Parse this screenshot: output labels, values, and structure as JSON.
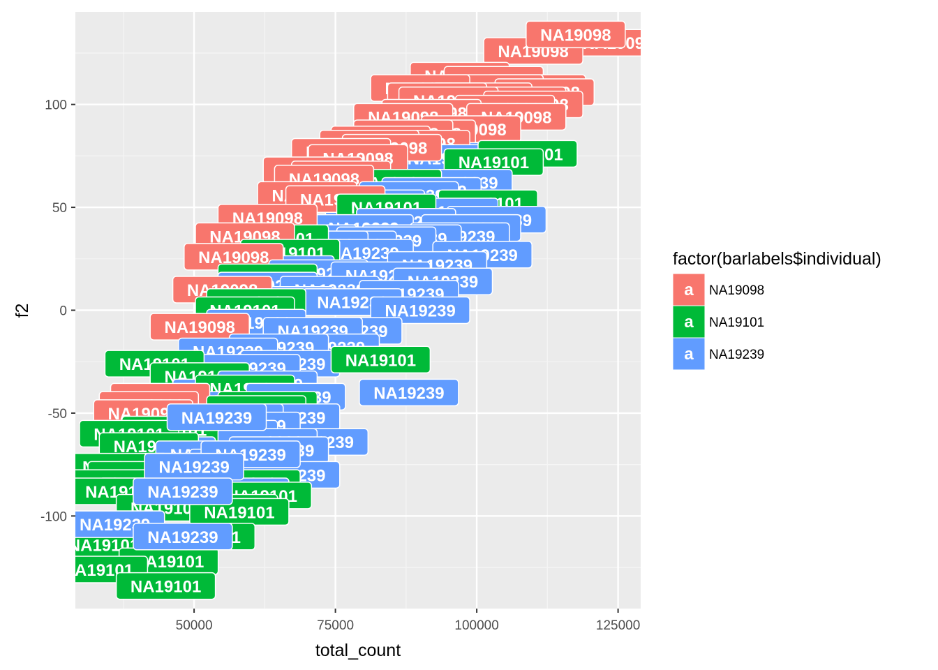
{
  "chart_data": {
    "type": "scatter",
    "xlabel": "total_count",
    "ylabel": "f2",
    "xlim": [
      29000,
      129000
    ],
    "ylim": [
      -145,
      145
    ],
    "x_ticks": [
      50000,
      75000,
      100000,
      125000
    ],
    "x_tick_labels": [
      "50000",
      "75000",
      "100000",
      "125000"
    ],
    "y_ticks": [
      -100,
      -50,
      0,
      50,
      100
    ],
    "y_tick_labels": [
      "-100",
      "-50",
      "0",
      "50",
      "100"
    ],
    "grid": true,
    "legend": {
      "title": "factor(barlabels$individual)",
      "position": "right",
      "key_glyph": "a"
    },
    "series": [
      {
        "name": "NA19098",
        "color": "#F8766D",
        "label": "NA19098",
        "points": [
          {
            "x": 117500,
            "y": 134
          },
          {
            "x": 125000,
            "y": 130
          },
          {
            "x": 110000,
            "y": 126
          },
          {
            "x": 97000,
            "y": 114
          },
          {
            "x": 103000,
            "y": 112
          },
          {
            "x": 90000,
            "y": 108
          },
          {
            "x": 103000,
            "y": 108
          },
          {
            "x": 110500,
            "y": 108
          },
          {
            "x": 112000,
            "y": 106
          },
          {
            "x": 93000,
            "y": 104
          },
          {
            "x": 101000,
            "y": 104
          },
          {
            "x": 95000,
            "y": 102
          },
          {
            "x": 107000,
            "y": 102
          },
          {
            "x": 110000,
            "y": 100
          },
          {
            "x": 92000,
            "y": 96
          },
          {
            "x": 105000,
            "y": 98
          },
          {
            "x": 107000,
            "y": 94
          },
          {
            "x": 87000,
            "y": 94
          },
          {
            "x": 99000,
            "y": 88
          },
          {
            "x": 87000,
            "y": 86
          },
          {
            "x": 83000,
            "y": 83
          },
          {
            "x": 91000,
            "y": 86
          },
          {
            "x": 81000,
            "y": 81
          },
          {
            "x": 85000,
            "y": 79
          },
          {
            "x": 90000,
            "y": 81
          },
          {
            "x": 76000,
            "y": 77
          },
          {
            "x": 79000,
            "y": 74
          },
          {
            "x": 71000,
            "y": 68
          },
          {
            "x": 76000,
            "y": 66
          },
          {
            "x": 73000,
            "y": 64
          },
          {
            "x": 70000,
            "y": 56
          },
          {
            "x": 75000,
            "y": 54
          },
          {
            "x": 63000,
            "y": 45
          },
          {
            "x": 59000,
            "y": 36
          },
          {
            "x": 57000,
            "y": 26
          },
          {
            "x": 55000,
            "y": 10
          },
          {
            "x": 51000,
            "y": -8
          },
          {
            "x": 44000,
            "y": -42
          },
          {
            "x": 42000,
            "y": -46
          },
          {
            "x": 41000,
            "y": -50
          }
        ]
      },
      {
        "name": "NA19101",
        "color": "#00BA38",
        "label": "NA19101",
        "points": [
          {
            "x": 109000,
            "y": 76
          },
          {
            "x": 103000,
            "y": 72
          },
          {
            "x": 85000,
            "y": 62
          },
          {
            "x": 102000,
            "y": 52
          },
          {
            "x": 84000,
            "y": 50
          },
          {
            "x": 65000,
            "y": 35
          },
          {
            "x": 67000,
            "y": 28
          },
          {
            "x": 63000,
            "y": 16
          },
          {
            "x": 61000,
            "y": 4
          },
          {
            "x": 59000,
            "y": 0
          },
          {
            "x": 83000,
            "y": -24
          },
          {
            "x": 43000,
            "y": -26
          },
          {
            "x": 51000,
            "y": -32
          },
          {
            "x": 59000,
            "y": -38
          },
          {
            "x": 63000,
            "y": -46
          },
          {
            "x": 61000,
            "y": -48
          },
          {
            "x": 46000,
            "y": -58
          },
          {
            "x": 38500,
            "y": -60
          },
          {
            "x": 42000,
            "y": -66
          },
          {
            "x": 36500,
            "y": -76
          },
          {
            "x": 40000,
            "y": -80
          },
          {
            "x": 35500,
            "y": -84
          },
          {
            "x": 60000,
            "y": -84
          },
          {
            "x": 37000,
            "y": -88
          },
          {
            "x": 62000,
            "y": -90
          },
          {
            "x": 45000,
            "y": -96
          },
          {
            "x": 56000,
            "y": -96
          },
          {
            "x": 35000,
            "y": -106
          },
          {
            "x": 58000,
            "y": -98
          },
          {
            "x": 32000,
            "y": -110
          },
          {
            "x": 52000,
            "y": -110
          },
          {
            "x": 34000,
            "y": -114
          },
          {
            "x": 45500,
            "y": -122
          },
          {
            "x": 33000,
            "y": -126
          },
          {
            "x": 45000,
            "y": -134
          }
        ]
      },
      {
        "name": "NA19239",
        "color": "#619CFF",
        "label": "NA19239",
        "points": [
          {
            "x": 101500,
            "y": 75
          },
          {
            "x": 94000,
            "y": 74
          },
          {
            "x": 97500,
            "y": 62
          },
          {
            "x": 92000,
            "y": 58
          },
          {
            "x": 88000,
            "y": 56
          },
          {
            "x": 82000,
            "y": 52
          },
          {
            "x": 95000,
            "y": 48
          },
          {
            "x": 103500,
            "y": 44
          },
          {
            "x": 87500,
            "y": 43
          },
          {
            "x": 99000,
            "y": 40
          },
          {
            "x": 80000,
            "y": 40
          },
          {
            "x": 97000,
            "y": 36
          },
          {
            "x": 70000,
            "y": 35
          },
          {
            "x": 84000,
            "y": 34
          },
          {
            "x": 72000,
            "y": 32
          },
          {
            "x": 88500,
            "y": 35
          },
          {
            "x": 77000,
            "y": 32
          },
          {
            "x": 101000,
            "y": 27
          },
          {
            "x": 80000,
            "y": 28
          },
          {
            "x": 93000,
            "y": 22
          },
          {
            "x": 66000,
            "y": 20
          },
          {
            "x": 72000,
            "y": 18
          },
          {
            "x": 83000,
            "y": 17
          },
          {
            "x": 94000,
            "y": 14
          },
          {
            "x": 63000,
            "y": 12
          },
          {
            "x": 74000,
            "y": 10
          },
          {
            "x": 88000,
            "y": 8
          },
          {
            "x": 66000,
            "y": 5
          },
          {
            "x": 78000,
            "y": 4
          },
          {
            "x": 90000,
            "y": 0
          },
          {
            "x": 61000,
            "y": -6
          },
          {
            "x": 71000,
            "y": -10
          },
          {
            "x": 78000,
            "y": -10
          },
          {
            "x": 65000,
            "y": -18
          },
          {
            "x": 74000,
            "y": -18
          },
          {
            "x": 56000,
            "y": -20
          },
          {
            "x": 67000,
            "y": -26
          },
          {
            "x": 60000,
            "y": -28
          },
          {
            "x": 63000,
            "y": -36
          },
          {
            "x": 55000,
            "y": -40
          },
          {
            "x": 68000,
            "y": -42
          },
          {
            "x": 52000,
            "y": -46
          },
          {
            "x": 62000,
            "y": -48
          },
          {
            "x": 44000,
            "y": -48
          },
          {
            "x": 57000,
            "y": -52
          },
          {
            "x": 60000,
            "y": -56
          },
          {
            "x": 67000,
            "y": -52
          },
          {
            "x": 48000,
            "y": -58
          },
          {
            "x": 56000,
            "y": -60
          },
          {
            "x": 63000,
            "y": -64
          },
          {
            "x": 72000,
            "y": -64
          },
          {
            "x": 45000,
            "y": -68
          },
          {
            "x": 65000,
            "y": -68
          },
          {
            "x": 52000,
            "y": -70
          },
          {
            "x": 58000,
            "y": -74
          },
          {
            "x": 67000,
            "y": -80
          },
          {
            "x": 50000,
            "y": -76
          },
          {
            "x": 42000,
            "y": -88
          },
          {
            "x": 58000,
            "y": -88
          },
          {
            "x": 47500,
            "y": -90
          },
          {
            "x": 36000,
            "y": -104
          },
          {
            "x": 48000,
            "y": -110
          }
        ]
      }
    ],
    "visible_label_top": [
      {
        "series": 2,
        "x": 88000,
        "y": -40
      },
      {
        "series": 2,
        "x": 54000,
        "y": -52
      },
      {
        "series": 2,
        "x": 60000,
        "y": -70
      },
      {
        "series": 2,
        "x": 50000,
        "y": -76
      },
      {
        "series": 2,
        "x": 48000,
        "y": -88
      },
      {
        "series": 2,
        "x": 36000,
        "y": -104
      },
      {
        "series": 2,
        "x": 48000,
        "y": -110
      },
      {
        "series": 0,
        "x": 117500,
        "y": 134
      }
    ]
  }
}
